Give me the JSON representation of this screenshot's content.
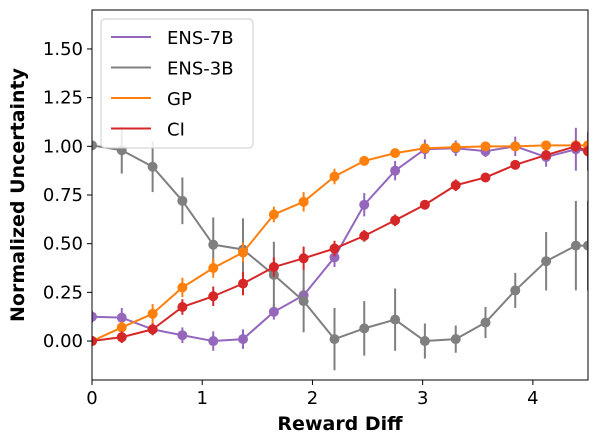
{
  "chart_data": {
    "type": "line",
    "xlabel": "Reward Diff",
    "ylabel": "Normalized Uncertainty",
    "xlim": [
      0,
      4.5
    ],
    "ylim": [
      -0.2,
      1.7
    ],
    "x_ticks": [
      {
        "value": 0,
        "label": "0"
      },
      {
        "value": 1,
        "label": "1"
      },
      {
        "value": 2,
        "label": "2"
      },
      {
        "value": 3,
        "label": "3"
      },
      {
        "value": 4,
        "label": "4"
      }
    ],
    "y_ticks": [
      {
        "value": 0.0,
        "label": "0.00"
      },
      {
        "value": 0.25,
        "label": "0.25"
      },
      {
        "value": 0.5,
        "label": "0.50"
      },
      {
        "value": 0.75,
        "label": "0.75"
      },
      {
        "value": 1.0,
        "label": "1.00"
      },
      {
        "value": 1.25,
        "label": "1.25"
      },
      {
        "value": 1.5,
        "label": "1.50"
      }
    ],
    "grid": false,
    "legend_position": "top-left",
    "x": [
      0.0,
      0.27,
      0.55,
      0.82,
      1.1,
      1.37,
      1.65,
      1.92,
      2.2,
      2.47,
      2.75,
      3.02,
      3.3,
      3.57,
      3.84,
      4.12,
      4.39,
      4.5
    ],
    "series": [
      {
        "name": "ENS-7B",
        "color": "#9467bd",
        "values": [
          0.125,
          0.12,
          0.06,
          0.03,
          0.0,
          0.01,
          0.15,
          0.235,
          0.43,
          0.7,
          0.875,
          0.985,
          0.99,
          0.975,
          1.0,
          0.945,
          0.985,
          0.975
        ],
        "errors": [
          0.03,
          0.05,
          0.03,
          0.04,
          0.05,
          0.05,
          0.04,
          0.04,
          0.05,
          0.06,
          0.05,
          0.05,
          0.04,
          0.03,
          0.05,
          0.05,
          0.11,
          0.1
        ]
      },
      {
        "name": "ENS-3B",
        "color": "#7f7f7f",
        "values": [
          1.005,
          0.98,
          0.895,
          0.72,
          0.495,
          0.47,
          0.34,
          0.205,
          0.01,
          0.065,
          0.11,
          0.0,
          0.01,
          0.095,
          0.26,
          0.41,
          0.49,
          0.49
        ],
        "errors": [
          0.0,
          0.12,
          0.13,
          0.12,
          0.14,
          0.16,
          0.17,
          0.16,
          0.16,
          0.14,
          0.16,
          0.09,
          0.07,
          0.08,
          0.09,
          0.15,
          0.23,
          0.23
        ]
      },
      {
        "name": "GP",
        "color": "#ff7f0e",
        "values": [
          0.0,
          0.07,
          0.14,
          0.275,
          0.375,
          0.455,
          0.65,
          0.715,
          0.845,
          0.925,
          0.965,
          0.99,
          0.995,
          1.0,
          1.0,
          1.005,
          1.005,
          1.005
        ],
        "errors": [
          0.02,
          0.03,
          0.05,
          0.05,
          0.05,
          0.05,
          0.04,
          0.05,
          0.04,
          0.02,
          0.02,
          0.02,
          0.02,
          0.02,
          0.02,
          0.02,
          0.02,
          0.02
        ]
      },
      {
        "name": "CI",
        "color": "#d62728",
        "values": [
          0.0,
          0.02,
          0.06,
          0.175,
          0.23,
          0.295,
          0.38,
          0.425,
          0.475,
          0.54,
          0.62,
          0.7,
          0.8,
          0.84,
          0.905,
          0.955,
          1.0,
          0.975
        ],
        "errors": [
          0.02,
          0.03,
          0.03,
          0.04,
          0.05,
          0.06,
          0.05,
          0.06,
          0.04,
          0.03,
          0.03,
          0.02,
          0.03,
          0.02,
          0.02,
          0.02,
          0.03,
          0.03
        ]
      }
    ]
  }
}
